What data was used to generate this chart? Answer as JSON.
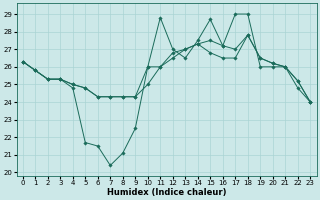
{
  "xlabel": "Humidex (Indice chaleur)",
  "bg_color": "#cce8e8",
  "line_color": "#1a6b5a",
  "grid_color": "#aad4d4",
  "xlim": [
    -0.5,
    23.5
  ],
  "ylim": [
    19.8,
    29.6
  ],
  "xticks": [
    0,
    1,
    2,
    3,
    4,
    5,
    6,
    7,
    8,
    9,
    10,
    11,
    12,
    13,
    14,
    15,
    16,
    17,
    18,
    19,
    20,
    21,
    22,
    23
  ],
  "yticks": [
    20,
    21,
    22,
    23,
    24,
    25,
    26,
    27,
    28,
    29
  ],
  "series1_x": [
    0,
    1,
    2,
    3,
    4,
    5,
    6,
    7,
    8,
    9,
    10,
    11,
    12,
    13,
    14,
    15,
    16,
    17,
    18,
    19,
    20,
    21,
    22,
    23
  ],
  "series1_y": [
    26.3,
    25.8,
    25.3,
    25.3,
    25.0,
    24.8,
    24.3,
    24.3,
    24.3,
    24.3,
    25.0,
    26.0,
    26.8,
    27.0,
    27.3,
    26.8,
    26.5,
    26.5,
    27.8,
    26.5,
    26.2,
    26.0,
    25.2,
    24.0
  ],
  "series2_x": [
    0,
    1,
    2,
    3,
    4,
    5,
    6,
    7,
    8,
    9,
    10,
    11,
    12,
    13,
    14,
    15,
    16,
    17,
    18,
    19,
    20,
    21,
    22,
    23
  ],
  "series2_y": [
    26.3,
    25.8,
    25.3,
    25.3,
    25.0,
    24.8,
    24.3,
    24.3,
    24.3,
    24.3,
    26.0,
    26.0,
    26.5,
    27.0,
    27.3,
    27.5,
    27.2,
    27.0,
    27.8,
    26.5,
    26.2,
    26.0,
    24.8,
    24.0
  ],
  "series3_x": [
    0,
    1,
    2,
    3,
    4,
    5,
    6,
    7,
    8,
    9,
    10,
    11,
    12,
    13,
    14,
    15,
    16,
    17,
    18,
    19,
    20,
    21,
    22,
    23
  ],
  "series3_y": [
    26.3,
    25.8,
    25.3,
    25.3,
    24.8,
    21.7,
    21.5,
    20.4,
    21.1,
    22.5,
    26.0,
    28.8,
    27.0,
    26.5,
    27.5,
    28.7,
    27.2,
    29.0,
    29.0,
    26.0,
    26.0,
    26.0,
    25.2,
    24.0
  ],
  "tick_fontsize": 5.0,
  "xlabel_fontsize": 6.0,
  "marker_size": 1.8,
  "line_width": 0.7
}
